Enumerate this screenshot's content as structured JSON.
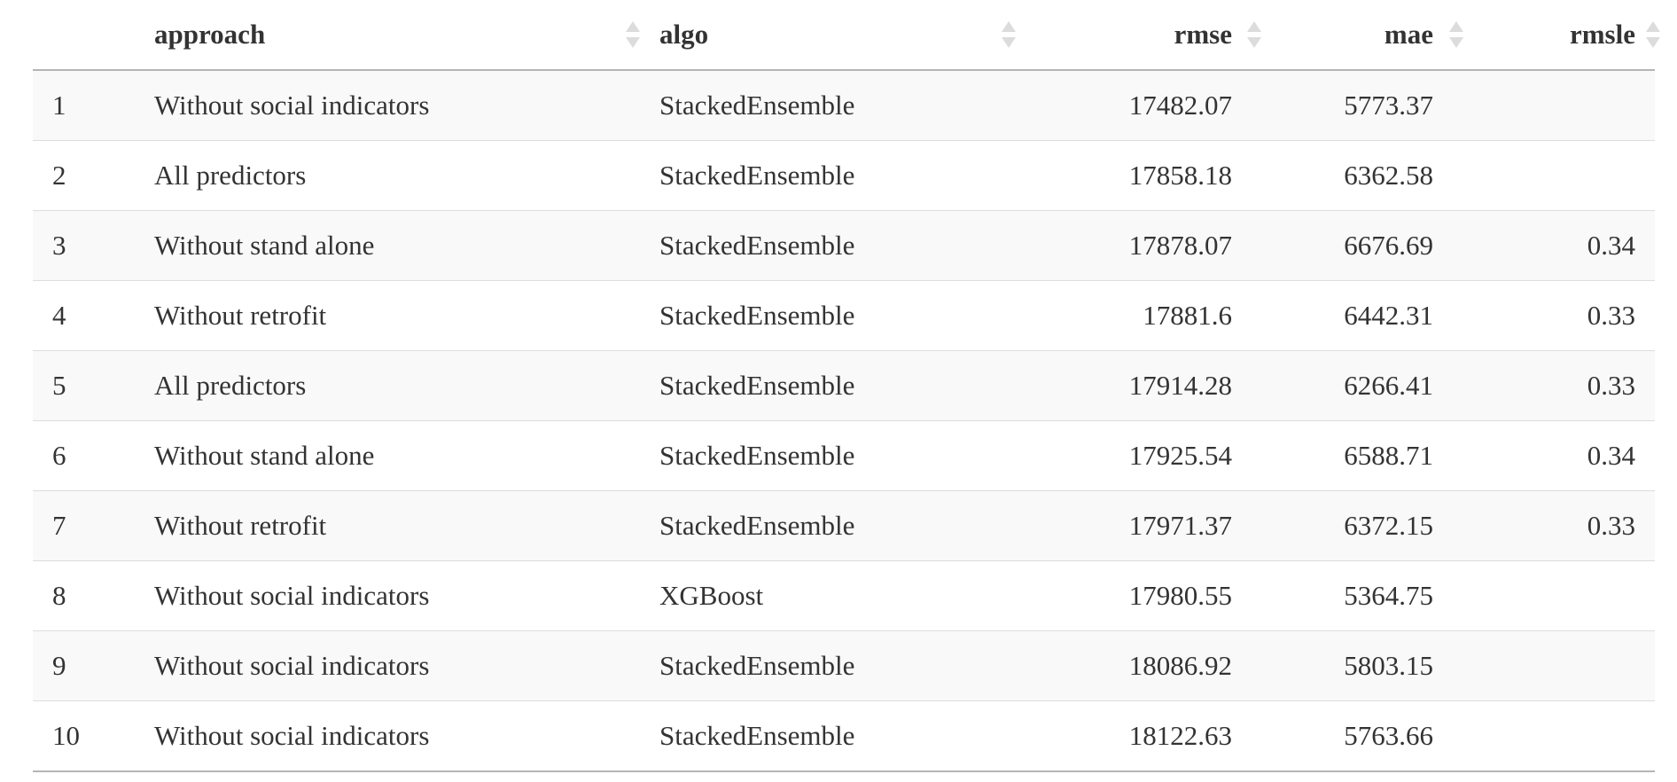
{
  "table": {
    "columns": {
      "index": "",
      "approach": "approach",
      "algo": "algo",
      "rmse": "rmse",
      "mae": "mae",
      "rmsle": "rmsle"
    },
    "rows": [
      {
        "idx": "1",
        "approach": "Without social indicators",
        "algo": "StackedEnsemble",
        "rmse": "17482.07",
        "mae": "5773.37",
        "rmsle": ""
      },
      {
        "idx": "2",
        "approach": "All predictors",
        "algo": "StackedEnsemble",
        "rmse": "17858.18",
        "mae": "6362.58",
        "rmsle": ""
      },
      {
        "idx": "3",
        "approach": "Without stand alone",
        "algo": "StackedEnsemble",
        "rmse": "17878.07",
        "mae": "6676.69",
        "rmsle": "0.34"
      },
      {
        "idx": "4",
        "approach": "Without retrofit",
        "algo": "StackedEnsemble",
        "rmse": "17881.6",
        "mae": "6442.31",
        "rmsle": "0.33"
      },
      {
        "idx": "5",
        "approach": "All predictors",
        "algo": "StackedEnsemble",
        "rmse": "17914.28",
        "mae": "6266.41",
        "rmsle": "0.33"
      },
      {
        "idx": "6",
        "approach": "Without stand alone",
        "algo": "StackedEnsemble",
        "rmse": "17925.54",
        "mae": "6588.71",
        "rmsle": "0.34"
      },
      {
        "idx": "7",
        "approach": "Without retrofit",
        "algo": "StackedEnsemble",
        "rmse": "17971.37",
        "mae": "6372.15",
        "rmsle": "0.33"
      },
      {
        "idx": "8",
        "approach": "Without social indicators",
        "algo": "XGBoost",
        "rmse": "17980.55",
        "mae": "5364.75",
        "rmsle": ""
      },
      {
        "idx": "9",
        "approach": "Without social indicators",
        "algo": "StackedEnsemble",
        "rmse": "18086.92",
        "mae": "5803.15",
        "rmsle": ""
      },
      {
        "idx": "10",
        "approach": "Without social indicators",
        "algo": "StackedEnsemble",
        "rmse": "18122.63",
        "mae": "5763.66",
        "rmsle": ""
      }
    ]
  },
  "icons": {
    "sort": "sort-both-icon"
  },
  "colors": {
    "text": "#333333",
    "stripe": "#f9f9f9",
    "border": "#dddddd",
    "header_border": "#b5b5b5",
    "sort_icon": "#dcdcdc"
  }
}
